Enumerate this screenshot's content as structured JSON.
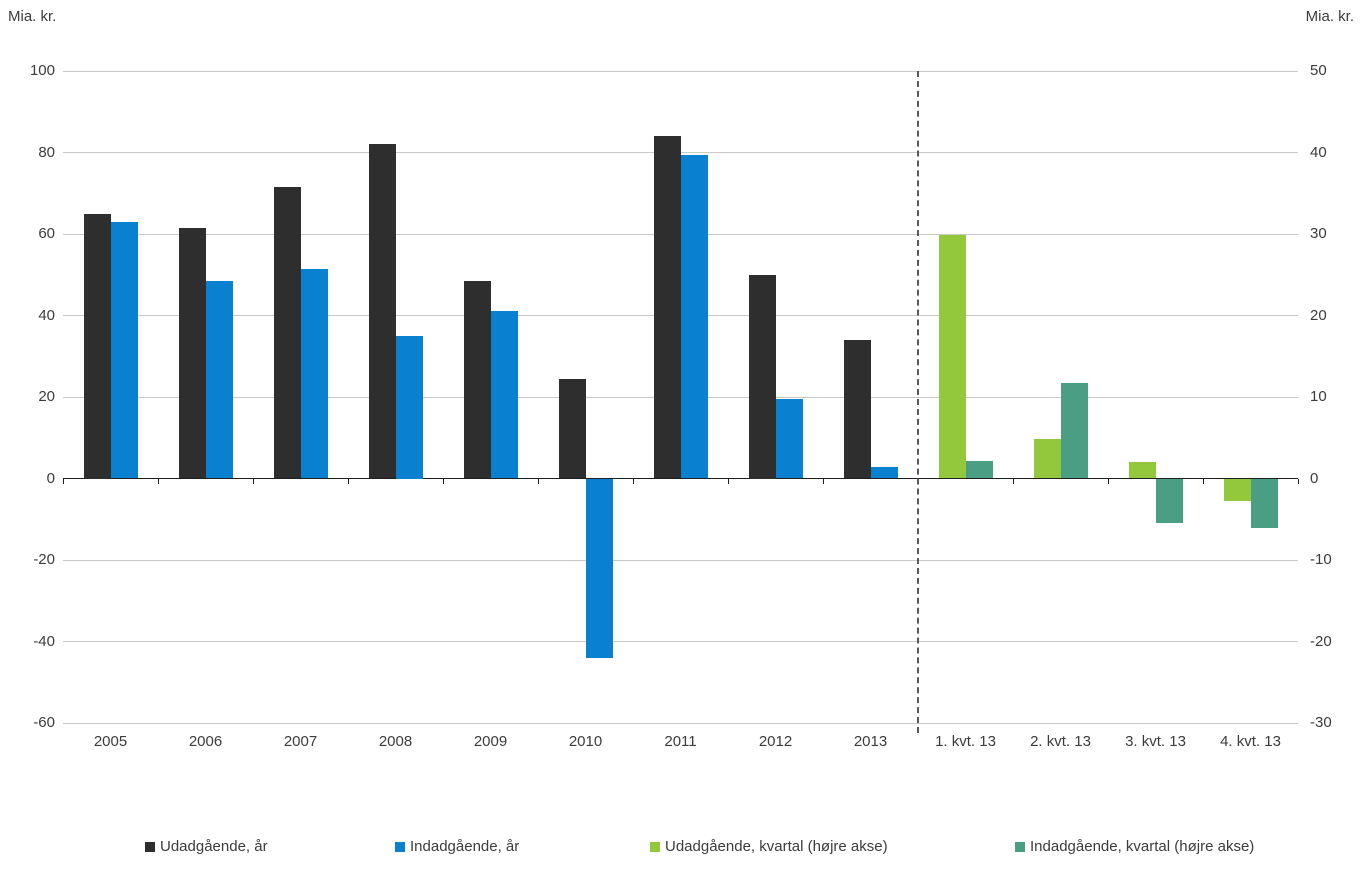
{
  "axis_units": {
    "left": "Mia. kr.",
    "right": "Mia. kr."
  },
  "chart_data": {
    "type": "bar",
    "title": "",
    "categories": [
      "2005",
      "2006",
      "2007",
      "2008",
      "2009",
      "2010",
      "2011",
      "2012",
      "2013",
      "1. kvt. 13",
      "2. kvt. 13",
      "3. kvt. 13",
      "4. kvt. 13"
    ],
    "series": [
      {
        "name": "Udadgående, år",
        "axis": "left",
        "color": "#2e2e2e",
        "values": [
          65,
          61.5,
          71.5,
          82,
          48.5,
          24.5,
          84,
          50,
          34,
          null,
          null,
          null,
          null
        ]
      },
      {
        "name": "Indadgående, år",
        "axis": "left",
        "color": "#0a80d0",
        "values": [
          63,
          48.5,
          51.5,
          35,
          41,
          -44,
          79.5,
          19.5,
          2.7,
          null,
          null,
          null,
          null
        ]
      },
      {
        "name": "Udadgående, kvartal (højre akse)",
        "axis": "right",
        "color": "#93c83d",
        "values": [
          null,
          null,
          null,
          null,
          null,
          null,
          null,
          null,
          null,
          29.9,
          4.8,
          2.0,
          -2.8
        ]
      },
      {
        "name": "Indadgående, kvartal (højre akse)",
        "axis": "right",
        "color": "#4a9e83",
        "values": [
          null,
          null,
          null,
          null,
          null,
          null,
          null,
          null,
          null,
          2.2,
          11.7,
          -5.4,
          -6.1
        ]
      }
    ],
    "left_axis": {
      "unit": "Mia. kr.",
      "min": -60,
      "max": 100,
      "step": 20,
      "ticks": [
        "100",
        "80",
        "60",
        "40",
        "20",
        "0",
        "-20",
        "-40",
        "-60"
      ]
    },
    "right_axis": {
      "unit": "Mia. kr.",
      "min": -30,
      "max": 50,
      "step": 10,
      "ticks": [
        "50",
        "40",
        "30",
        "20",
        "10",
        "0",
        "-10",
        "-20",
        "-30"
      ]
    },
    "separator_after_category": "2013",
    "grid": true,
    "legend_position": "bottom"
  }
}
